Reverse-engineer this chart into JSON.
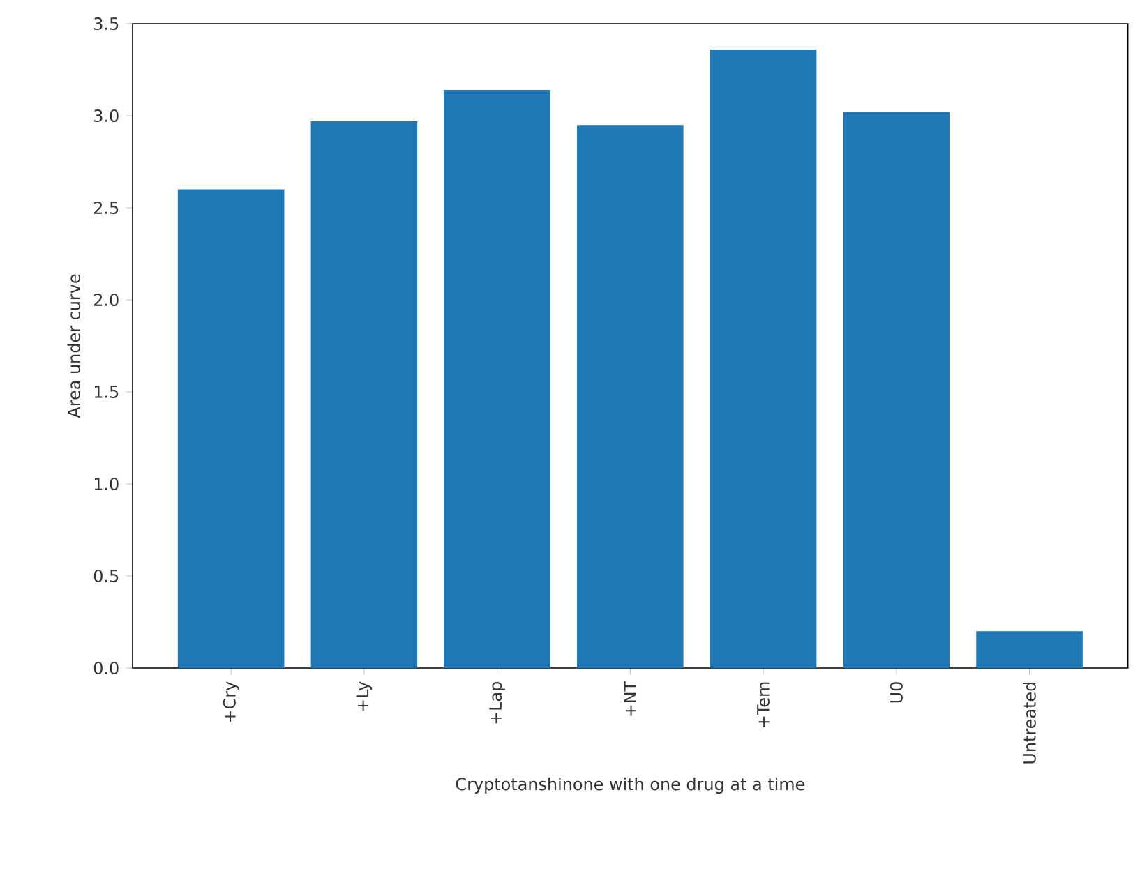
{
  "chart_data": {
    "type": "bar",
    "xlabel": "Cryptotanshinone with one drug at a time",
    "ylabel": "Area under curve",
    "categories": [
      "+Cry",
      "+Ly",
      "+Lap",
      "+NT",
      "+Tem",
      "U0",
      "Untreated"
    ],
    "values": [
      2.6,
      2.97,
      3.14,
      2.95,
      3.36,
      3.02,
      0.2
    ],
    "color": "#1f77b4",
    "ylim": [
      0,
      3.5
    ],
    "yticks": [
      {
        "value": 0,
        "label": "0.0"
      },
      {
        "value": 0.5,
        "label": "0.5"
      },
      {
        "value": 1,
        "label": "1.0"
      },
      {
        "value": 1.5,
        "label": "1.5"
      },
      {
        "value": 2,
        "label": "2.0"
      },
      {
        "value": 2.5,
        "label": "2.5"
      },
      {
        "value": 3,
        "label": "3.0"
      },
      {
        "value": 3.5,
        "label": "3.5"
      }
    ],
    "grid": false
  }
}
